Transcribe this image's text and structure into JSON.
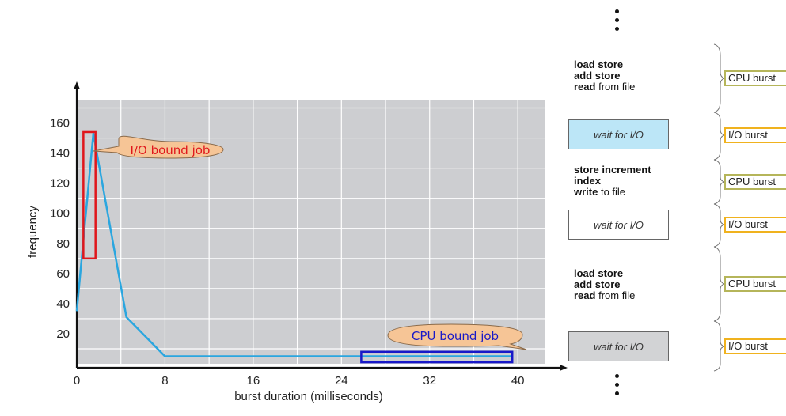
{
  "chart_data": {
    "type": "line",
    "x": [
      0,
      1.5,
      4.5,
      8,
      16,
      24,
      32,
      39.5
    ],
    "y": [
      35,
      153,
      31,
      5,
      5,
      5,
      5,
      5
    ],
    "xlabel": "burst duration (milliseconds)",
    "ylabel": "frequency",
    "xticks": [
      0,
      8,
      16,
      24,
      32,
      40
    ],
    "yticks": [
      20,
      40,
      60,
      80,
      100,
      120,
      140,
      160
    ],
    "xlim": [
      0,
      42.5
    ],
    "ylim": [
      0,
      175
    ],
    "grid": true,
    "annotations": [
      {
        "text": "I/O bound job",
        "color": "#e0161b",
        "box_x": [
          0.6,
          1.7
        ],
        "box_y": [
          70,
          154
        ]
      },
      {
        "text": "CPU bound job",
        "color": "#1818c8",
        "box_x": [
          25.8,
          39.5
        ],
        "box_y": [
          1,
          8
        ]
      }
    ],
    "colors": {
      "line": "#2aa6df",
      "plot_bg": "#cdced1",
      "callout_fill": "#f6c596"
    }
  },
  "program": {
    "blocks": [
      {
        "lines": [
          {
            "kw": "",
            "rest": "load store"
          },
          {
            "kw": "",
            "rest": "add store"
          },
          {
            "kw": "read",
            "rest": " from file"
          }
        ]
      },
      {
        "lines": [
          {
            "kw": "",
            "rest": "store increment"
          },
          {
            "kw": "",
            "rest": "index"
          },
          {
            "kw": "write",
            "rest": " to file"
          }
        ]
      },
      {
        "lines": [
          {
            "kw": "",
            "rest": "load store"
          },
          {
            "kw": "",
            "rest": "add store"
          },
          {
            "kw": "read",
            "rest": " from file"
          }
        ]
      }
    ],
    "waits": [
      {
        "label": "wait for I/O",
        "fill": "#bce6f7"
      },
      {
        "label": "wait for I/O",
        "fill": "#ffffff"
      },
      {
        "label": "wait for I/O",
        "fill": "#d2d3d5"
      }
    ]
  },
  "bursts": [
    {
      "label": "CPU burst",
      "color": "#b5b55a"
    },
    {
      "label": "I/O burst",
      "color": "#f0b21e"
    },
    {
      "label": "CPU burst",
      "color": "#b5b55a"
    },
    {
      "label": "I/O burst",
      "color": "#f0b21e"
    },
    {
      "label": "CPU burst",
      "color": "#b5b55a"
    },
    {
      "label": "I/O burst",
      "color": "#f0b21e"
    }
  ]
}
